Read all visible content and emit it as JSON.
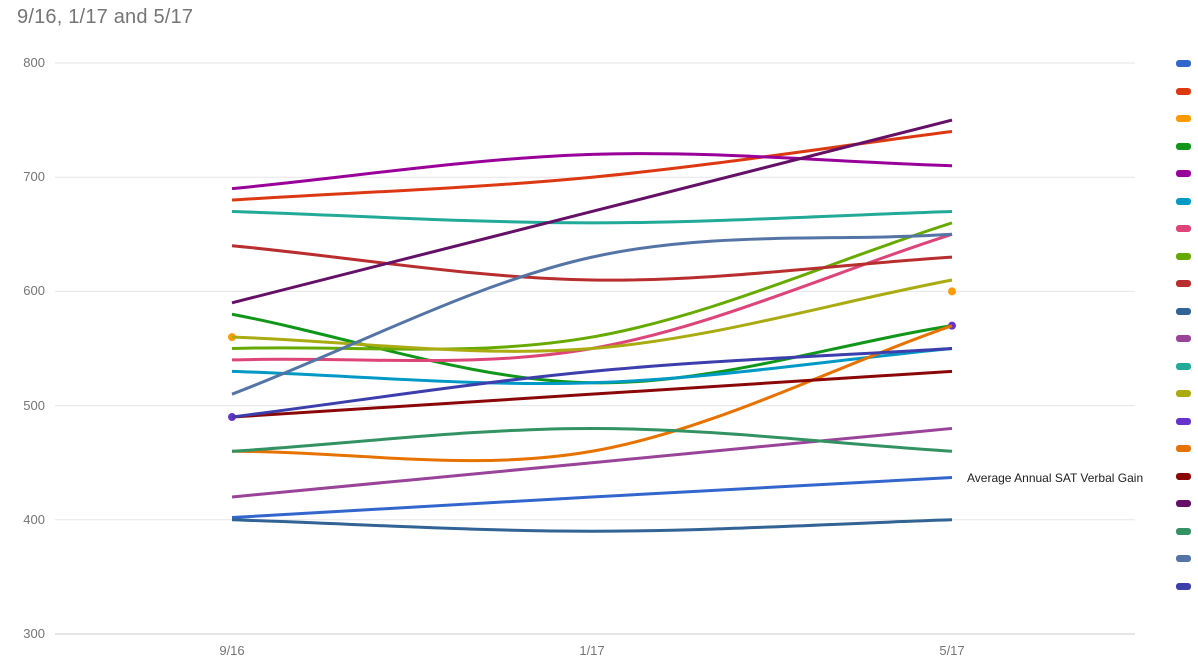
{
  "title": "9/16, 1/17 and 5/17",
  "annotation": {
    "text": "Average Annual SAT Verbal Gain",
    "series_id": "s1",
    "x_index": 2
  },
  "x_axis": {
    "labels": [
      "9/16",
      "1/17",
      "5/17"
    ]
  },
  "y_axis": {
    "labels": [
      "800",
      "700",
      "600",
      "500",
      "400",
      "300"
    ]
  },
  "legend": {
    "position": "right",
    "labels_visible": false
  },
  "chart_data": {
    "type": "line",
    "title": "9/16, 1/17 and 5/17",
    "line_shape": "smooth",
    "grid": true,
    "x_categories": [
      "9/16",
      "1/17",
      "5/17"
    ],
    "y_ticks": [
      800,
      700,
      600,
      500,
      400,
      300
    ],
    "ylim": [
      300,
      800
    ],
    "legend_position": "right (cut off at edge; only color swatches visible)",
    "gridline_color": "#e6e6e6",
    "baseline_color": "#cccccc",
    "series": [
      {
        "id": "s1",
        "color": "#3366CC",
        "style": "line",
        "values": [
          402,
          420,
          437
        ],
        "annotation": "Average Annual SAT Verbal Gain"
      },
      {
        "id": "s2",
        "color": "#DC3912",
        "style": "line",
        "values": [
          680,
          700,
          740
        ]
      },
      {
        "id": "s3",
        "color": "#FF9900",
        "style": "points",
        "values": [
          560,
          null,
          600
        ]
      },
      {
        "id": "s4",
        "color": "#109618",
        "style": "line",
        "values": [
          580,
          520,
          570
        ]
      },
      {
        "id": "s5",
        "color": "#990099",
        "style": "line",
        "values": [
          690,
          720,
          710
        ]
      },
      {
        "id": "s6",
        "color": "#0099C6",
        "style": "line",
        "values": [
          530,
          520,
          550
        ]
      },
      {
        "id": "s7",
        "color": "#DD4477",
        "style": "line",
        "values": [
          540,
          550,
          650
        ]
      },
      {
        "id": "s8",
        "color": "#66AA00",
        "style": "line",
        "values": [
          550,
          560,
          660
        ]
      },
      {
        "id": "s9",
        "color": "#B82E2E",
        "style": "line",
        "values": [
          640,
          610,
          630
        ]
      },
      {
        "id": "s10",
        "color": "#316395",
        "style": "line",
        "values": [
          400,
          390,
          400
        ]
      },
      {
        "id": "s11",
        "color": "#994499",
        "style": "line",
        "values": [
          420,
          450,
          480
        ]
      },
      {
        "id": "s12",
        "color": "#22AA99",
        "style": "line",
        "values": [
          670,
          660,
          670
        ]
      },
      {
        "id": "s13",
        "color": "#AAAA11",
        "style": "line",
        "values": [
          560,
          550,
          610
        ]
      },
      {
        "id": "s14",
        "color": "#6633CC",
        "style": "points",
        "values": [
          490,
          null,
          570
        ]
      },
      {
        "id": "s15",
        "color": "#E67300",
        "style": "line",
        "values": [
          460,
          460,
          570
        ]
      },
      {
        "id": "s16",
        "color": "#8B0707",
        "style": "line",
        "values": [
          490,
          510,
          530
        ]
      },
      {
        "id": "s17",
        "color": "#651067",
        "style": "line",
        "values": [
          590,
          670,
          750
        ]
      },
      {
        "id": "s18",
        "color": "#329262",
        "style": "line",
        "values": [
          460,
          480,
          460
        ]
      },
      {
        "id": "s19",
        "color": "#5574A6",
        "style": "line",
        "values": [
          510,
          630,
          650
        ]
      },
      {
        "id": "s20",
        "color": "#3B3EAC",
        "style": "line",
        "values": [
          490,
          530,
          550
        ]
      }
    ]
  }
}
